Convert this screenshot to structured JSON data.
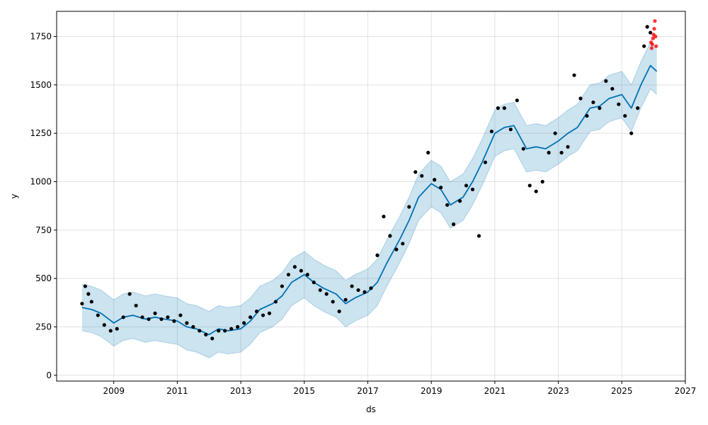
{
  "chart_data": {
    "type": "scatter",
    "title": "",
    "xlabel": "ds",
    "ylabel": "y",
    "xlim": [
      2007.2,
      2027.0
    ],
    "ylim": [
      -30,
      1880
    ],
    "grid": true,
    "x_ticks": [
      2009,
      2011,
      2013,
      2015,
      2017,
      2019,
      2021,
      2023,
      2025,
      2027
    ],
    "y_ticks": [
      0,
      250,
      500,
      750,
      1000,
      1250,
      1500,
      1750
    ],
    "x_tick_labels": [
      "2009",
      "2011",
      "2013",
      "2015",
      "2017",
      "2019",
      "2021",
      "2023",
      "2025",
      "2027"
    ],
    "y_tick_labels": [
      "0",
      "250",
      "500",
      "750",
      "1000",
      "1250",
      "1500",
      "1750"
    ],
    "colors": {
      "observed": "#000000",
      "future_observed": "#ff0000",
      "forecast": "#0072B2",
      "interval": "#0072B2"
    },
    "series": [
      {
        "role": "forecast",
        "x": [
          2008.0,
          2008.3,
          2008.6,
          2009.0,
          2009.3,
          2009.6,
          2010.0,
          2010.3,
          2010.6,
          2011.0,
          2011.3,
          2011.6,
          2012.0,
          2012.3,
          2012.6,
          2013.0,
          2013.3,
          2013.6,
          2014.0,
          2014.3,
          2014.6,
          2015.0,
          2015.3,
          2015.6,
          2016.0,
          2016.3,
          2016.6,
          2017.0,
          2017.3,
          2017.6,
          2018.0,
          2018.3,
          2018.6,
          2019.0,
          2019.3,
          2019.6,
          2020.0,
          2020.3,
          2020.6,
          2021.0,
          2021.3,
          2021.6,
          2022.0,
          2022.3,
          2022.6,
          2023.0,
          2023.3,
          2023.6,
          2024.0,
          2024.3,
          2024.6,
          2025.0,
          2025.3,
          2025.6,
          2025.9,
          2026.1
        ],
        "y": [
          350,
          340,
          320,
          270,
          300,
          310,
          290,
          300,
          290,
          280,
          250,
          240,
          210,
          240,
          230,
          240,
          280,
          340,
          370,
          410,
          480,
          520,
          480,
          450,
          420,
          370,
          400,
          430,
          480,
          580,
          700,
          800,
          920,
          990,
          960,
          880,
          920,
          1000,
          1100,
          1250,
          1280,
          1290,
          1170,
          1180,
          1170,
          1210,
          1250,
          1280,
          1380,
          1390,
          1430,
          1450,
          1380,
          1500,
          1600,
          1570
        ]
      },
      {
        "role": "interval_upper",
        "x": [
          2008.0,
          2008.3,
          2008.6,
          2009.0,
          2009.3,
          2009.6,
          2010.0,
          2010.3,
          2010.6,
          2011.0,
          2011.3,
          2011.6,
          2012.0,
          2012.3,
          2012.6,
          2013.0,
          2013.3,
          2013.6,
          2014.0,
          2014.3,
          2014.6,
          2015.0,
          2015.3,
          2015.6,
          2016.0,
          2016.3,
          2016.6,
          2017.0,
          2017.3,
          2017.6,
          2018.0,
          2018.3,
          2018.6,
          2019.0,
          2019.3,
          2019.6,
          2020.0,
          2020.3,
          2020.6,
          2021.0,
          2021.3,
          2021.6,
          2022.0,
          2022.3,
          2022.6,
          2023.0,
          2023.3,
          2023.6,
          2024.0,
          2024.3,
          2024.6,
          2025.0,
          2025.3,
          2025.6,
          2025.9,
          2026.1
        ],
        "y": [
          470,
          460,
          440,
          390,
          420,
          430,
          410,
          420,
          410,
          400,
          370,
          360,
          330,
          360,
          350,
          360,
          400,
          460,
          490,
          530,
          600,
          640,
          600,
          570,
          540,
          490,
          520,
          550,
          600,
          700,
          820,
          920,
          1040,
          1110,
          1080,
          1000,
          1040,
          1120,
          1220,
          1370,
          1400,
          1410,
          1290,
          1300,
          1290,
          1330,
          1370,
          1400,
          1500,
          1510,
          1550,
          1570,
          1500,
          1620,
          1720,
          1690
        ]
      },
      {
        "role": "interval_lower",
        "x": [
          2008.0,
          2008.3,
          2008.6,
          2009.0,
          2009.3,
          2009.6,
          2010.0,
          2010.3,
          2010.6,
          2011.0,
          2011.3,
          2011.6,
          2012.0,
          2012.3,
          2012.6,
          2013.0,
          2013.3,
          2013.6,
          2014.0,
          2014.3,
          2014.6,
          2015.0,
          2015.3,
          2015.6,
          2016.0,
          2016.3,
          2016.6,
          2017.0,
          2017.3,
          2017.6,
          2018.0,
          2018.3,
          2018.6,
          2019.0,
          2019.3,
          2019.6,
          2020.0,
          2020.3,
          2020.6,
          2021.0,
          2021.3,
          2021.6,
          2022.0,
          2022.3,
          2022.6,
          2023.0,
          2023.3,
          2023.6,
          2024.0,
          2024.3,
          2024.6,
          2025.0,
          2025.3,
          2025.6,
          2025.9,
          2026.1
        ],
        "y": [
          230,
          220,
          200,
          150,
          180,
          190,
          170,
          180,
          170,
          160,
          130,
          120,
          90,
          120,
          110,
          120,
          160,
          220,
          250,
          290,
          360,
          400,
          360,
          330,
          300,
          250,
          280,
          310,
          360,
          460,
          580,
          680,
          800,
          870,
          840,
          760,
          800,
          880,
          980,
          1130,
          1160,
          1170,
          1050,
          1060,
          1050,
          1090,
          1130,
          1160,
          1260,
          1270,
          1310,
          1330,
          1260,
          1380,
          1480,
          1450
        ]
      },
      {
        "role": "observed",
        "x": [
          2008.0,
          2008.1,
          2008.2,
          2008.3,
          2008.5,
          2008.7,
          2008.9,
          2009.1,
          2009.3,
          2009.5,
          2009.7,
          2009.9,
          2010.1,
          2010.3,
          2010.5,
          2010.7,
          2010.9,
          2011.1,
          2011.3,
          2011.5,
          2011.7,
          2011.9,
          2012.1,
          2012.3,
          2012.5,
          2012.7,
          2012.9,
          2013.1,
          2013.3,
          2013.5,
          2013.7,
          2013.9,
          2014.1,
          2014.3,
          2014.5,
          2014.7,
          2014.9,
          2015.1,
          2015.3,
          2015.5,
          2015.7,
          2015.9,
          2016.1,
          2016.3,
          2016.5,
          2016.7,
          2016.9,
          2017.1,
          2017.3,
          2017.5,
          2017.7,
          2017.9,
          2018.1,
          2018.3,
          2018.5,
          2018.7,
          2018.9,
          2019.1,
          2019.3,
          2019.5,
          2019.7,
          2019.9,
          2020.1,
          2020.3,
          2020.5,
          2020.7,
          2020.9,
          2021.1,
          2021.3,
          2021.5,
          2021.7,
          2021.9,
          2022.1,
          2022.3,
          2022.5,
          2022.7,
          2022.9,
          2023.1,
          2023.3,
          2023.5,
          2023.7,
          2023.9,
          2024.1,
          2024.3,
          2024.5,
          2024.7,
          2024.9,
          2025.1,
          2025.3,
          2025.5,
          2025.7,
          2025.8,
          2025.9
        ],
        "y": [
          370,
          460,
          420,
          380,
          310,
          260,
          230,
          240,
          300,
          420,
          360,
          300,
          290,
          320,
          290,
          300,
          280,
          310,
          270,
          250,
          230,
          210,
          190,
          230,
          230,
          240,
          250,
          270,
          300,
          330,
          310,
          320,
          380,
          460,
          520,
          560,
          540,
          520,
          480,
          440,
          420,
          380,
          330,
          390,
          460,
          440,
          430,
          450,
          620,
          820,
          720,
          650,
          680,
          870,
          1050,
          1030,
          1150,
          1010,
          970,
          880,
          780,
          900,
          980,
          960,
          720,
          1100,
          1260,
          1380,
          1380,
          1270,
          1420,
          1170,
          980,
          950,
          1000,
          1150,
          1250,
          1150,
          1180,
          1550,
          1430,
          1340,
          1410,
          1380,
          1520,
          1480,
          1400,
          1340,
          1250,
          1380,
          1700,
          1800,
          1770
        ]
      },
      {
        "role": "future_observed",
        "x": [
          2025.92,
          2025.94,
          2025.96,
          2025.98,
          2026.0,
          2026.02,
          2026.04,
          2026.06,
          2026.08
        ],
        "y": [
          1720,
          1690,
          1710,
          1740,
          1760,
          1790,
          1830,
          1750,
          1700
        ]
      }
    ]
  }
}
